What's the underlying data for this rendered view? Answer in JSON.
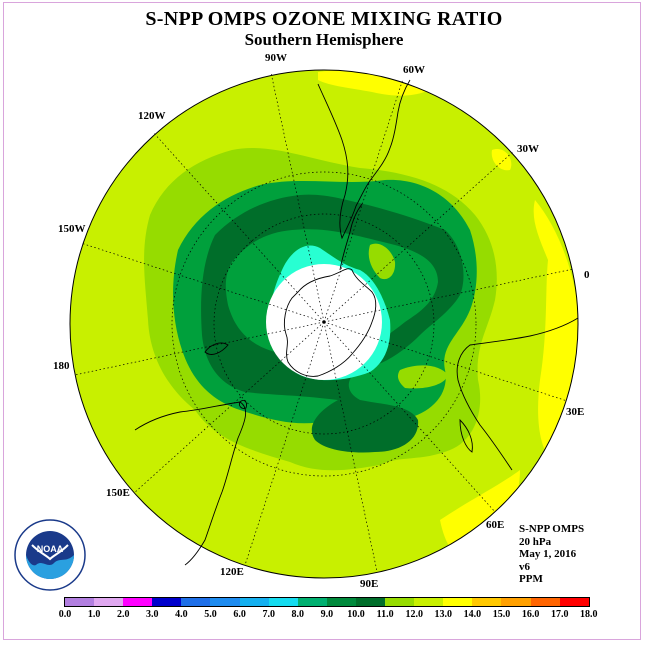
{
  "title": "S-NPP OMPS OZONE MIXING RATIO",
  "subtitle": "Southern Hemisphere",
  "longitude_labels": [
    {
      "text": "90W",
      "lon": -90
    },
    {
      "text": "60W",
      "lon": -60
    },
    {
      "text": "30W",
      "lon": -30
    },
    {
      "text": "0",
      "lon": 0
    },
    {
      "text": "30E",
      "lon": 30
    },
    {
      "text": "60E",
      "lon": 60
    },
    {
      "text": "90E",
      "lon": 90
    },
    {
      "text": "120E",
      "lon": 120
    },
    {
      "text": "150E",
      "lon": 150
    },
    {
      "text": "180",
      "lon": 180
    },
    {
      "text": "150W",
      "lon": -150
    },
    {
      "text": "120W",
      "lon": -120
    }
  ],
  "info": {
    "instrument": "S-NPP OMPS",
    "level": "20 hPa",
    "date": "May 1, 2016",
    "version": "v6",
    "units": "PPM"
  },
  "logo_text": "NOAA",
  "colorbar": {
    "ticks": [
      "0.0",
      "1.0",
      "2.0",
      "3.0",
      "4.0",
      "5.0",
      "6.0",
      "7.0",
      "8.0",
      "9.0",
      "10.0",
      "11.0",
      "12.0",
      "13.0",
      "14.0",
      "15.0",
      "16.0",
      "17.0",
      "18.0"
    ],
    "colors": [
      "#b27fe0",
      "#e0a8f0",
      "#ff00ff",
      "#0000cc",
      "#1e6fe8",
      "#1e8cf0",
      "#14b0f0",
      "#14dcf0",
      "#00b070",
      "#008a3c",
      "#006e2a",
      "#96dc00",
      "#c8f000",
      "#ffff00",
      "#ffc800",
      "#ffa000",
      "#ff6400",
      "#ff0000",
      "#8b4a1e"
    ]
  },
  "map_colors": {
    "ocean_12": "#c8f000",
    "band_11": "#96dc00",
    "band_10": "#00a03c",
    "band_9": "#006e2a",
    "cyan_8": "#28ffd2",
    "yellow_13": "#ffff00",
    "nodata": "#ffffff"
  }
}
